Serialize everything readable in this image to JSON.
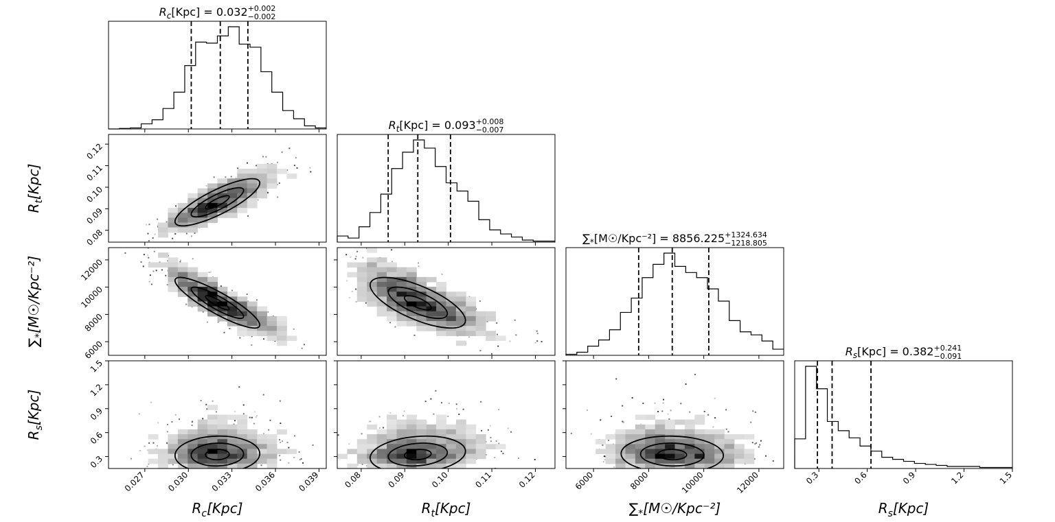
{
  "chart_data": {
    "type": "corner",
    "parameters": [
      {
        "id": "rc",
        "label_main": "R",
        "label_sub": "c",
        "label_unit": "[Kpc]",
        "title": {
          "main": "R",
          "sub": "c",
          "unit": "[Kpc] = 0.032",
          "plus": "+0.002",
          "minus": "−0.002"
        },
        "median": 0.032,
        "err_plus": 0.002,
        "err_minus": 0.002,
        "range": [
          0.0245,
          0.0395
        ],
        "ticks": [
          0.027,
          0.03,
          0.033,
          0.036,
          0.039
        ],
        "tick_labels": [
          "0.027",
          "0.030",
          "0.033",
          "0.036",
          "0.039"
        ],
        "quantiles": [
          0.0302,
          0.0322,
          0.0341
        ],
        "hist_counts": [
          0,
          0.5,
          1,
          5,
          9,
          20,
          36,
          62,
          85,
          84,
          91,
          100,
          83,
          80,
          56,
          36,
          18,
          10,
          3,
          1
        ]
      },
      {
        "id": "rt",
        "label_main": "R",
        "label_sub": "t",
        "label_unit": "[Kpc]",
        "title": {
          "main": "R",
          "sub": "t",
          "unit": "[Kpc] = 0.093",
          "plus": "+0.008",
          "minus": "−0.007"
        },
        "median": 0.093,
        "err_plus": 0.008,
        "err_minus": 0.007,
        "range": [
          0.0745,
          0.1245
        ],
        "ticks": [
          0.08,
          0.09,
          0.1,
          0.11,
          0.12
        ],
        "tick_labels": [
          "0.08",
          "0.09",
          "0.10",
          "0.11",
          "0.12"
        ],
        "quantiles": [
          0.0862,
          0.093,
          0.1005
        ],
        "hist_counts": [
          6,
          4,
          15,
          29,
          47,
          72,
          88,
          100,
          92,
          74,
          58,
          50,
          40,
          22,
          12,
          8,
          5,
          2,
          1,
          1
        ]
      },
      {
        "id": "sigma",
        "label_main": "∑",
        "label_sub": "*",
        "label_unit": "[M☉/Kpc⁻²]",
        "title": {
          "main": "∑",
          "sub": "*",
          "unit": "[M☉/Kpc⁻²] = 8856.225",
          "plus": "+1324.634",
          "minus": "−1218.805"
        },
        "median": 8856.225,
        "err_plus": 1324.634,
        "err_minus": 1218.805,
        "range": [
          5000,
          12900
        ],
        "ticks": [
          6000,
          8000,
          10000,
          12000
        ],
        "tick_labels": [
          "6000",
          "8000",
          "10000",
          "12000"
        ],
        "quantiles": [
          7637.42,
          8856.225,
          10180.859
        ],
        "hist_counts": [
          1,
          3,
          9,
          15,
          25,
          42,
          56,
          76,
          89,
          100,
          87,
          81,
          76,
          65,
          53,
          34,
          23,
          20,
          14,
          6
        ]
      },
      {
        "id": "rs",
        "label_main": "R",
        "label_sub": "s",
        "label_unit": "[Kpc]",
        "title": {
          "main": "R",
          "sub": "s",
          "unit": "[Kpc] = 0.382",
          "plus": "+0.241",
          "minus": "−0.091"
        },
        "median": 0.382,
        "err_plus": 0.241,
        "err_minus": 0.091,
        "range": [
          0.15,
          1.5
        ],
        "ticks": [
          0.3,
          0.6,
          0.9,
          1.2,
          1.5
        ],
        "tick_labels": [
          "0.3",
          "0.6",
          "0.9",
          "1.2",
          "1.5"
        ],
        "quantiles": [
          0.291,
          0.382,
          0.623
        ],
        "hist_counts": [
          29,
          100,
          78,
          46,
          37,
          30,
          22,
          17,
          11,
          9,
          7,
          5,
          4,
          3,
          2,
          2,
          2,
          1,
          1,
          1
        ]
      }
    ],
    "correlations": {
      "1-0": 0.82,
      "2-0": -0.88,
      "2-1": -0.7,
      "3-0": 0.05,
      "3-1": 0.18,
      "3-2": -0.05
    },
    "contour_levels": [
      0.39,
      0.86,
      1.39
    ],
    "scatter_points_per_panel": 480
  }
}
